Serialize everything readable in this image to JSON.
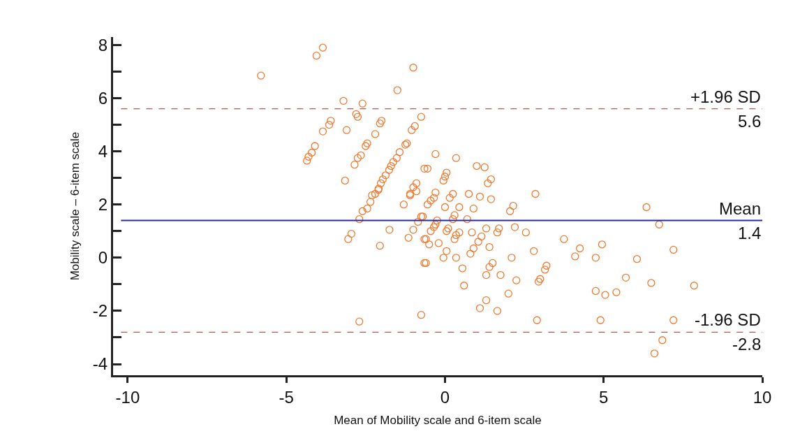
{
  "chart_data": {
    "type": "scatter",
    "xlabel": "Mean of Mobility scale and 6-item scale",
    "ylabel": "Mobility scale – 6-item scale",
    "xlim": [
      -10.46,
      10
    ],
    "xticks": [
      -10,
      -5,
      0,
      5,
      10
    ],
    "ylim": [
      -4.42,
      8.3
    ],
    "yticks": [
      -4,
      {
        "value": -3,
        "label": null
      },
      -2,
      {
        "value": -1,
        "label": null
      },
      0,
      {
        "value": 1,
        "label": null
      },
      2,
      {
        "value": 3,
        "label": null
      },
      4,
      {
        "value": 5,
        "label": null
      },
      6,
      {
        "value": 7,
        "label": null
      },
      8
    ],
    "marker": "circle",
    "series": [
      {
        "color": "#f07a30",
        "x": [
          -5.8,
          -4.05,
          -3.85,
          -1.0,
          -1.5,
          -3.2,
          -2.6,
          -2.8,
          -2.75,
          -3.6,
          -3.65,
          -3.85,
          -3.1,
          -2.0,
          -2.05,
          -2.2,
          -2.45,
          -2.5,
          -2.65,
          -2.75,
          -2.85,
          -4.1,
          -4.2,
          -4.3,
          -4.35,
          -3.15,
          -2.6,
          -2.45,
          -2.35,
          -2.3,
          -2.1,
          -2.7,
          -2.95,
          -3.05,
          -1.75,
          -2.05,
          -1.3,
          -1.1,
          -0.9,
          -1.0,
          -1.15,
          -0.75,
          -0.85,
          -0.65,
          -0.65,
          -2.7,
          -0.75,
          -0.75,
          -0.95,
          -1.05,
          -1.25,
          -1.2,
          -1.43,
          -1.52,
          -1.63,
          -1.7,
          -1.76,
          -1.87,
          -1.96,
          -2.02,
          -2.09,
          -2.2,
          -0.9,
          -1.0,
          -1.1,
          -0.65,
          -0.3,
          0.35,
          1.0,
          1.25,
          -0.55,
          0.05,
          0.0,
          -0.05,
          1.45,
          1.35,
          -0.3,
          -0.35,
          -0.45,
          -0.55,
          0.25,
          0.15,
          0.75,
          1.1,
          1.45,
          2.85,
          0.0,
          0.45,
          0.9,
          2.15,
          2.05,
          -0.7,
          -0.25,
          -0.3,
          -0.35,
          -0.45,
          0.3,
          0.25,
          0.7,
          0.1,
          0.05,
          0.45,
          0.35,
          0.3,
          0.85,
          1.3,
          1.7,
          1.65,
          2.2,
          2.55,
          -0.6,
          -0.5,
          -0.2,
          1.15,
          1.05,
          0.9,
          0.8,
          1.4,
          0.05,
          -0.05,
          0.35,
          -0.6,
          0.55,
          1.5,
          1.4,
          1.3,
          1.75,
          2.1,
          2.8,
          3.75,
          4.25,
          4.1,
          3.2,
          3.15,
          3.0,
          2.95,
          2.25,
          0.6,
          2.0,
          1.3,
          1.1,
          1.65,
          2.9,
          6.35,
          6.75,
          4.95,
          7.2,
          4.75,
          6.05,
          5.7,
          6.5,
          7.85,
          4.75,
          5.05,
          5.4,
          4.9,
          7.2,
          6.85,
          6.6
        ],
        "values": [
          6.85,
          7.6,
          7.9,
          7.15,
          6.3,
          5.9,
          5.8,
          5.4,
          5.3,
          5.15,
          5.0,
          4.75,
          4.8,
          5.15,
          5.05,
          4.65,
          4.3,
          4.2,
          3.85,
          3.75,
          3.5,
          4.2,
          3.95,
          3.8,
          3.65,
          2.9,
          1.75,
          1.85,
          2.1,
          2.35,
          2.55,
          1.45,
          0.9,
          0.7,
          1.05,
          0.45,
          2.0,
          2.35,
          2.5,
          1.05,
          0.75,
          1.55,
          1.35,
          0.7,
          -0.2,
          -2.4,
          -2.15,
          5.3,
          4.95,
          4.8,
          4.25,
          4.3,
          3.97,
          3.75,
          3.6,
          3.45,
          3.3,
          3.1,
          2.95,
          2.8,
          2.6,
          2.4,
          2.8,
          2.65,
          2.4,
          3.35,
          3.9,
          3.75,
          3.45,
          3.4,
          3.35,
          3.2,
          3.05,
          2.9,
          2.95,
          2.8,
          2.45,
          2.25,
          2.15,
          2.0,
          2.4,
          2.25,
          2.4,
          2.3,
          2.2,
          2.4,
          1.9,
          1.9,
          1.85,
          1.95,
          1.75,
          1.55,
          1.4,
          1.25,
          1.15,
          1.0,
          1.6,
          1.45,
          1.45,
          1.1,
          1.0,
          0.95,
          0.85,
          0.7,
          0.95,
          1.1,
          1.1,
          0.95,
          1.15,
          0.95,
          0.7,
          0.5,
          0.55,
          0.8,
          0.6,
          0.35,
          0.15,
          0.4,
          0.25,
          0.0,
          0.0,
          -0.2,
          -0.4,
          -0.2,
          -0.35,
          -0.65,
          -0.65,
          0.0,
          0.25,
          0.7,
          0.35,
          0.05,
          -0.3,
          -0.45,
          -0.8,
          -0.9,
          -0.85,
          -1.05,
          -1.35,
          -1.6,
          -1.9,
          -2.0,
          -2.35,
          1.9,
          1.25,
          0.5,
          0.3,
          0.0,
          -0.05,
          -0.75,
          -0.95,
          -1.05,
          -1.25,
          -1.4,
          -1.3,
          -2.35,
          -2.35,
          -3.1,
          -3.6
        ]
      }
    ],
    "ref_lines": [
      {
        "axis": "y",
        "value": 5.6,
        "label": "+1.96 SD",
        "color": "#a0302a",
        "line_style": "dashed"
      },
      {
        "axis": "y",
        "value": 1.4,
        "label": "Mean",
        "color": "#2a2aa0",
        "line_style": "solid"
      },
      {
        "axis": "y",
        "value": -2.8,
        "label": "-1.96 SD",
        "color": "#a0302a",
        "line_style": "dashed"
      }
    ],
    "annotations": [
      {
        "text": "5.6",
        "y": 5.6
      },
      {
        "text": "1.4",
        "y": 1.4
      },
      {
        "text": "-2.8",
        "y": -2.8
      }
    ]
  }
}
